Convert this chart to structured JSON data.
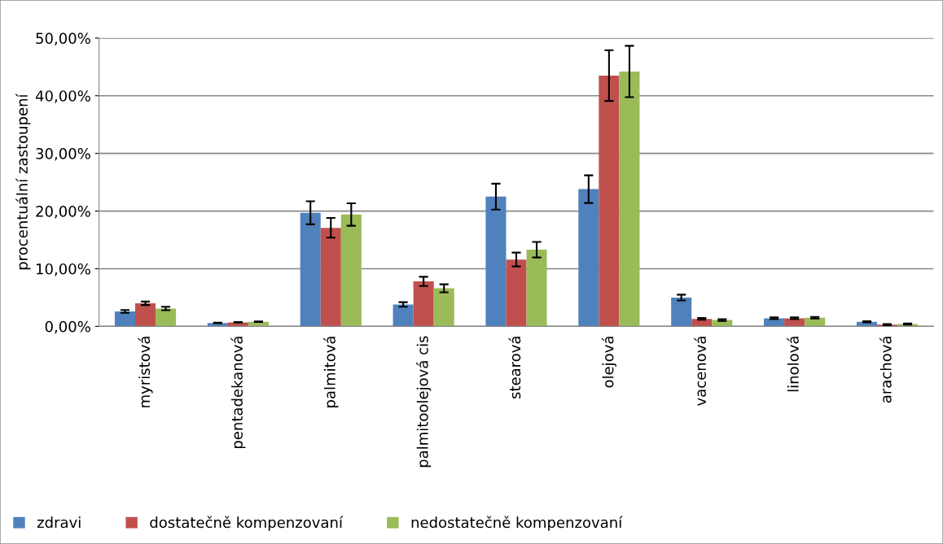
{
  "chart_data": {
    "type": "bar",
    "ylabel": "procentuální zastoupení",
    "categories": [
      "myristová",
      "pentadekanová",
      "palmitová",
      "palmitoolejová cis",
      "stearová",
      "olejová",
      "vacenová",
      "linolová",
      "arachová"
    ],
    "series": [
      {
        "name": "zdravi",
        "color": "#4f81bd",
        "values": [
          2.6,
          0.6,
          19.7,
          3.8,
          22.5,
          23.8,
          5.0,
          1.4,
          0.8
        ],
        "errors": [
          0.25,
          0.05,
          2.0,
          0.4,
          2.25,
          2.4,
          0.5,
          0.15,
          0.1
        ]
      },
      {
        "name": "dostatečně kompenzovaní",
        "color": "#c0504d",
        "values": [
          4.0,
          0.7,
          17.1,
          7.8,
          11.6,
          43.5,
          1.3,
          1.4,
          0.3
        ],
        "errors": [
          0.3,
          0.05,
          1.7,
          0.8,
          1.2,
          4.4,
          0.15,
          0.15,
          0.1
        ]
      },
      {
        "name": "nedostatečně kompenzovaní",
        "color": "#9bbb59",
        "values": [
          3.1,
          0.8,
          19.4,
          6.6,
          13.3,
          44.2,
          1.1,
          1.5,
          0.4
        ],
        "errors": [
          0.3,
          0.05,
          1.95,
          0.7,
          1.35,
          4.45,
          0.15,
          0.15,
          0.1
        ]
      }
    ],
    "ylim": [
      0,
      50
    ],
    "yticks": [
      {
        "value": 0,
        "label": "0,00%"
      },
      {
        "value": 10,
        "label": "10,00%"
      },
      {
        "value": 20,
        "label": "20,00%"
      },
      {
        "value": 30,
        "label": "30,00%"
      },
      {
        "value": 40,
        "label": "40,00%"
      },
      {
        "value": 50,
        "label": "50,00%"
      }
    ],
    "grid": "y",
    "legend": "bottom"
  }
}
